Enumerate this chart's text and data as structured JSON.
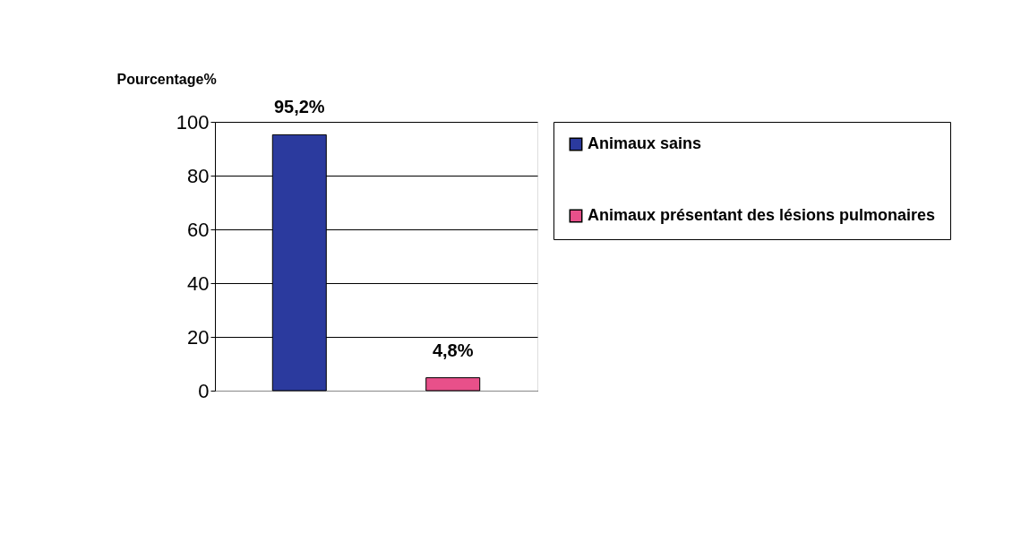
{
  "chart_data": {
    "type": "bar",
    "ylabel": "Pourcentage%",
    "categories": [
      null
    ],
    "series": [
      {
        "name": "Animaux sains",
        "color": "#2b3a9e",
        "values": [
          95.2
        ],
        "value_labels": [
          "95,2%"
        ]
      },
      {
        "name": "Animaux présentant des lésions pulmonaires",
        "color": "#e8508a",
        "values": [
          4.8
        ],
        "value_labels": [
          "4,8%"
        ]
      }
    ],
    "ylim": [
      0,
      100
    ],
    "yticks": [
      0,
      20,
      40,
      60,
      80,
      100
    ],
    "grid": "y",
    "legend": "right",
    "tick_labels": "y"
  }
}
